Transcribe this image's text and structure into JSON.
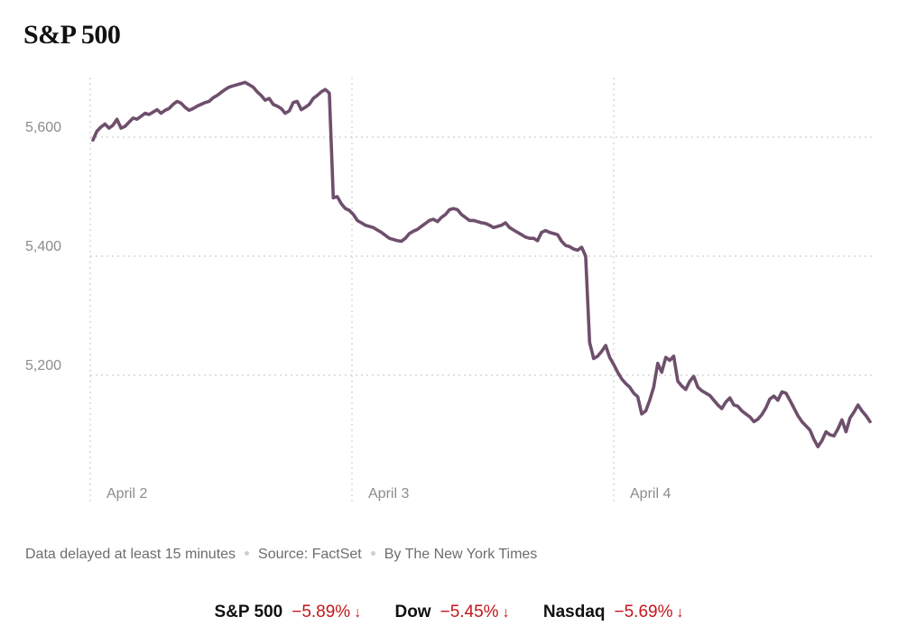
{
  "chart_data": {
    "type": "line",
    "title": "S&P 500",
    "y_ticks": [
      5200,
      5400,
      5600
    ],
    "y_tick_labels": [
      "5,200",
      "5,400",
      "5,600"
    ],
    "ylim": [
      5000,
      5700
    ],
    "x_ticks": [
      "April 2",
      "April 3",
      "April 4"
    ],
    "grid": true,
    "line_color": "#6e4f6c",
    "series": [
      {
        "values": [
          5595,
          5610,
          5617,
          5622,
          5615,
          5620,
          5630,
          5615,
          5618,
          5625,
          5632,
          5630,
          5635,
          5640,
          5638,
          5642,
          5646,
          5640,
          5645,
          5648,
          5655,
          5660,
          5657,
          5650,
          5645,
          5648,
          5652,
          5655,
          5658,
          5660,
          5666,
          5670,
          5675,
          5680,
          5684,
          5686,
          5688,
          5690,
          5692,
          5688,
          5684,
          5676,
          5670,
          5662,
          5665,
          5655,
          5652,
          5648,
          5640,
          5644,
          5658,
          5660,
          5646,
          5650,
          5655,
          5665,
          5670,
          5676,
          5680,
          5674,
          5498,
          5500,
          5488,
          5480,
          5477,
          5470,
          5460,
          5456,
          5452,
          5450,
          5448,
          5444,
          5440,
          5435,
          5430,
          5428,
          5426,
          5425,
          5430,
          5438,
          5442,
          5445,
          5450,
          5455,
          5460,
          5462,
          5458,
          5465,
          5470,
          5478,
          5480,
          5478,
          5470,
          5465,
          5460,
          5460,
          5458,
          5456,
          5455,
          5452,
          5448,
          5450,
          5452,
          5456,
          5448,
          5444,
          5440,
          5436,
          5432,
          5430,
          5430,
          5426,
          5440,
          5443,
          5440,
          5438,
          5436,
          5425,
          5418,
          5416,
          5412,
          5410,
          5415,
          5400,
          5255,
          5228,
          5232,
          5240,
          5250,
          5230,
          5218,
          5205,
          5194,
          5186,
          5180,
          5170,
          5164,
          5135,
          5140,
          5158,
          5180,
          5220,
          5205,
          5230,
          5225,
          5232,
          5190,
          5182,
          5176,
          5190,
          5198,
          5180,
          5174,
          5170,
          5166,
          5158,
          5150,
          5144,
          5155,
          5162,
          5150,
          5148,
          5140,
          5135,
          5130,
          5122,
          5126,
          5134,
          5145,
          5160,
          5165,
          5158,
          5172,
          5170,
          5158,
          5145,
          5132,
          5122,
          5115,
          5108,
          5092,
          5080,
          5090,
          5105,
          5100,
          5098,
          5110,
          5125,
          5105,
          5128,
          5138,
          5150,
          5140,
          5132,
          5122
        ]
      }
    ]
  },
  "footer": {
    "note": "Data delayed at least 15 minutes",
    "source": "Source: FactSet",
    "byline": "By The New York Times"
  },
  "indices": [
    {
      "name": "S&P 500",
      "change": "−5.89%",
      "arrow": "↓"
    },
    {
      "name": "Dow",
      "change": "−5.45%",
      "arrow": "↓"
    },
    {
      "name": "Nasdaq",
      "change": "−5.69%",
      "arrow": "↓"
    }
  ],
  "colors": {
    "line": "#6e4f6c",
    "negative": "#c2161c",
    "grid": "#d6d6d6"
  }
}
